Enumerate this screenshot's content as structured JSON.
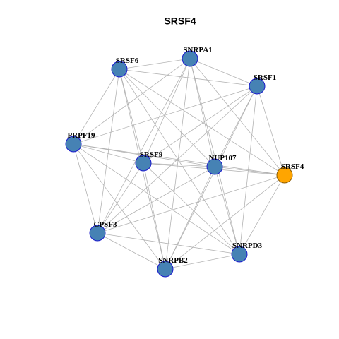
{
  "title": "SRSF4",
  "nodes": [
    {
      "label": "SRSF6"
    },
    {
      "label": "SNRPA1"
    },
    {
      "label": "SRSF1"
    },
    {
      "label": "PRPF19"
    },
    {
      "label": "SRSF9"
    },
    {
      "label": "NUP107"
    },
    {
      "label": "SRSF4"
    },
    {
      "label": "CPSF3"
    },
    {
      "label": "SNRPD3"
    },
    {
      "label": "SNRPB2"
    }
  ]
}
